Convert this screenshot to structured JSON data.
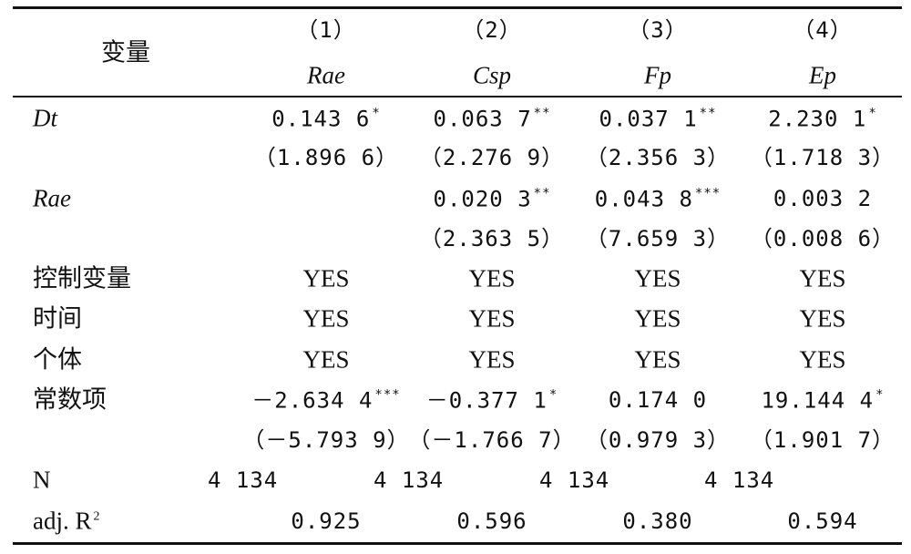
{
  "header": {
    "label": "变量",
    "columns": [
      {
        "number": "（1）",
        "name": "Rae"
      },
      {
        "number": "（2）",
        "name": "Csp"
      },
      {
        "number": "（3）",
        "name": "Fp"
      },
      {
        "number": "（4）",
        "name": "Ep"
      }
    ]
  },
  "rows": [
    {
      "label": "Dt",
      "italic": true,
      "cells": [
        {
          "text": "0.143 6",
          "stars": "*"
        },
        {
          "text": "0.063 7",
          "stars": "**"
        },
        {
          "text": "0.037 1",
          "stars": "**"
        },
        {
          "text": "2.230 1",
          "stars": "*"
        }
      ]
    },
    {
      "cells": [
        {
          "text": "（1.896 6）"
        },
        {
          "text": "（2.276 9）"
        },
        {
          "text": "（2.356 3）"
        },
        {
          "text": "（1.718 3）"
        }
      ]
    },
    {
      "label": "Rae",
      "italic": true,
      "cells": [
        null,
        {
          "text": "0.020 3",
          "stars": "**"
        },
        {
          "text": "0.043 8",
          "stars": "***"
        },
        {
          "text": "0.003 2"
        }
      ]
    },
    {
      "cells": [
        null,
        {
          "text": "（2.363 5）"
        },
        {
          "text": "（7.659 3）"
        },
        {
          "text": "（0.008 6）"
        }
      ]
    },
    {
      "label": "控制变量",
      "cells": [
        {
          "text": "YES"
        },
        {
          "text": "YES"
        },
        {
          "text": "YES"
        },
        {
          "text": "YES"
        }
      ]
    },
    {
      "label": "时间",
      "cells": [
        {
          "text": "YES"
        },
        {
          "text": "YES"
        },
        {
          "text": "YES"
        },
        {
          "text": "YES"
        }
      ]
    },
    {
      "label": "个体",
      "cells": [
        {
          "text": "YES"
        },
        {
          "text": "YES"
        },
        {
          "text": "YES"
        },
        {
          "text": "YES"
        }
      ]
    },
    {
      "label": "常数项",
      "cells": [
        {
          "text": "－2.634 4",
          "stars": "***"
        },
        {
          "text": "－0.377 1",
          "stars": "*"
        },
        {
          "text": "0.174 0"
        },
        {
          "text": "19.144 4",
          "stars": "*"
        }
      ]
    },
    {
      "cells": [
        {
          "text": "（－5.793 9）"
        },
        {
          "text": "（－1.766 7）"
        },
        {
          "text": "（0.979 3）"
        },
        {
          "text": "（1.901 7）"
        }
      ]
    },
    {
      "label": "N",
      "align": "left",
      "cells": [
        {
          "text": "4 134"
        },
        {
          "text": "4 134"
        },
        {
          "text": "4 134"
        },
        {
          "text": "4 134"
        }
      ]
    },
    {
      "label": "adj. R",
      "label_sup": "2",
      "cells": [
        {
          "text": "0.925"
        },
        {
          "text": "0.596"
        },
        {
          "text": "0.380"
        },
        {
          "text": "0.594"
        }
      ]
    }
  ]
}
